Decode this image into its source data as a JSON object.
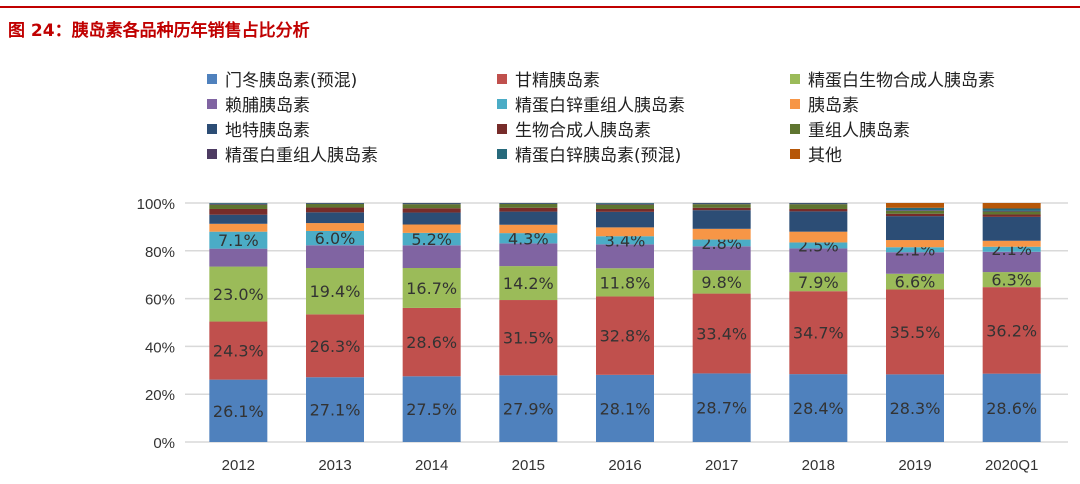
{
  "title": "图 24：胰岛素各品种历年销售占比分析",
  "chart_data": {
    "type": "bar",
    "stacked": true,
    "title": "",
    "xlabel": "",
    "ylabel": "",
    "ylim": [
      0,
      100
    ],
    "yticks": [
      "0%",
      "20%",
      "40%",
      "60%",
      "80%",
      "100%"
    ],
    "grid": true,
    "legend_position": "top",
    "categories": [
      "2012",
      "2013",
      "2014",
      "2015",
      "2016",
      "2017",
      "2018",
      "2019",
      "2020Q1"
    ],
    "series": [
      {
        "name": "门冬胰岛素(预混)",
        "color": "#4F81BD",
        "values": [
          26.1,
          27.1,
          27.5,
          27.9,
          28.1,
          28.7,
          28.4,
          28.3,
          28.6
        ],
        "labels": true
      },
      {
        "name": "甘精胰岛素",
        "color": "#C0504D",
        "values": [
          24.3,
          26.3,
          28.6,
          31.5,
          32.8,
          33.4,
          34.7,
          35.5,
          36.2
        ],
        "labels": true
      },
      {
        "name": "精蛋白生物合成人胰岛素",
        "color": "#9BBB59",
        "values": [
          23.0,
          19.4,
          16.7,
          14.2,
          11.8,
          9.8,
          7.9,
          6.6,
          6.3
        ],
        "labels": true
      },
      {
        "name": "赖脯胰岛素",
        "color": "#8064A2",
        "values": [
          7.5,
          9.5,
          9.5,
          9.5,
          10.0,
          10.0,
          10.0,
          9.0,
          8.5
        ]
      },
      {
        "name": "精蛋白锌重组人胰岛素",
        "color": "#4BACC6",
        "values": [
          7.1,
          6.0,
          5.2,
          4.3,
          3.4,
          2.8,
          2.5,
          2.1,
          2.1
        ],
        "labels": true
      },
      {
        "name": "胰岛素",
        "color": "#F79646",
        "values": [
          3.3,
          3.3,
          3.5,
          3.5,
          3.7,
          4.5,
          4.5,
          3.0,
          2.5
        ]
      },
      {
        "name": "地特胰岛素",
        "color": "#2C4D75",
        "values": [
          3.8,
          4.5,
          5.0,
          5.5,
          6.5,
          7.8,
          8.5,
          10.0,
          10.0
        ]
      },
      {
        "name": "生物合成人胰岛素",
        "color": "#772C2A",
        "values": [
          2.4,
          2.0,
          1.8,
          1.6,
          1.2,
          1.0,
          1.0,
          1.0,
          1.0
        ]
      },
      {
        "name": "重组人胰岛素",
        "color": "#5F7530",
        "values": [
          1.8,
          1.5,
          1.7,
          1.6,
          1.8,
          1.5,
          2.0,
          1.2,
          1.2
        ]
      },
      {
        "name": "精蛋白重组人胰岛素",
        "color": "#4D3B62",
        "values": [
          0.4,
          0.2,
          0.3,
          0.2,
          0.4,
          0.3,
          0.3,
          0.3,
          0.3
        ]
      },
      {
        "name": "精蛋白锌胰岛素(预混)",
        "color": "#276A7C",
        "values": [
          0.3,
          0.2,
          0.2,
          0.2,
          0.3,
          0.2,
          0.2,
          1.0,
          1.0
        ]
      },
      {
        "name": "其他",
        "color": "#B65708",
        "values": [
          0,
          0,
          0,
          0,
          0,
          0,
          0,
          2.0,
          2.3
        ]
      }
    ]
  }
}
